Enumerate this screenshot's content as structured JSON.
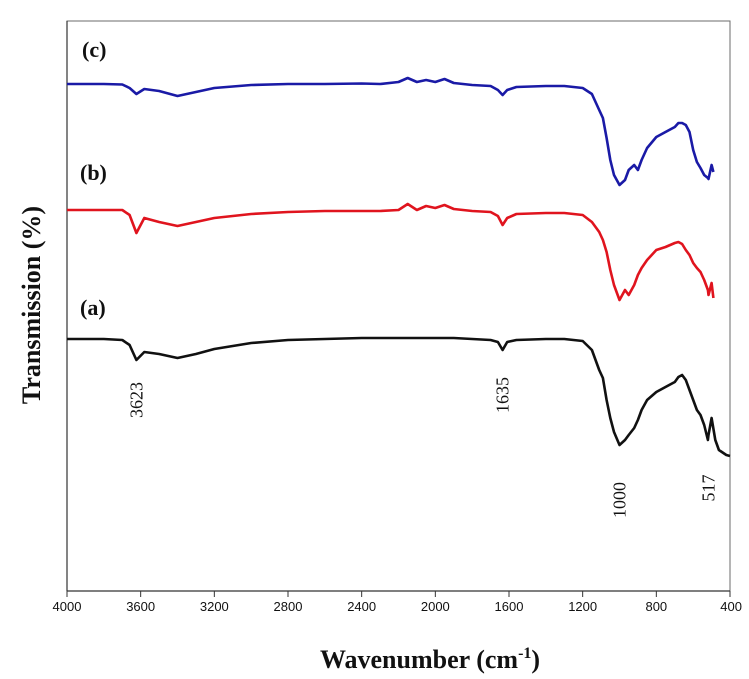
{
  "chart_data": {
    "type": "line",
    "xlabel": "Wavenumber (cm",
    "xlabel_sup": "-1",
    "xlabel_end": ")",
    "ylabel": "Transmission (%)",
    "xlim": [
      4000,
      400
    ],
    "x_reversed": true,
    "xticks": [
      "4000",
      "3600",
      "3200",
      "2800",
      "2400",
      "2000",
      "1600",
      "1200",
      "800",
      "400"
    ],
    "yticks_shown": false,
    "grid": false,
    "legend": "none",
    "series": [
      {
        "name": "(c)",
        "color": "#1a1aa6",
        "points": [
          [
            4000,
            84
          ],
          [
            3800,
            84
          ],
          [
            3700,
            84.5
          ],
          [
            3660,
            88
          ],
          [
            3623,
            94
          ],
          [
            3580,
            89
          ],
          [
            3500,
            91
          ],
          [
            3400,
            96
          ],
          [
            3300,
            92
          ],
          [
            3200,
            88
          ],
          [
            3000,
            85
          ],
          [
            2800,
            84
          ],
          [
            2600,
            84
          ],
          [
            2400,
            83.5
          ],
          [
            2300,
            84
          ],
          [
            2200,
            82
          ],
          [
            2150,
            78
          ],
          [
            2100,
            82
          ],
          [
            2050,
            80
          ],
          [
            2000,
            82
          ],
          [
            1950,
            79
          ],
          [
            1900,
            83
          ],
          [
            1850,
            84
          ],
          [
            1800,
            85
          ],
          [
            1700,
            86
          ],
          [
            1660,
            90
          ],
          [
            1635,
            95
          ],
          [
            1610,
            90
          ],
          [
            1560,
            87
          ],
          [
            1400,
            86
          ],
          [
            1300,
            86
          ],
          [
            1200,
            88
          ],
          [
            1150,
            94
          ],
          [
            1110,
            110
          ],
          [
            1090,
            118
          ],
          [
            1070,
            138
          ],
          [
            1050,
            160
          ],
          [
            1030,
            175
          ],
          [
            1000,
            185
          ],
          [
            970,
            180
          ],
          [
            950,
            170
          ],
          [
            920,
            165
          ],
          [
            900,
            170
          ],
          [
            880,
            160
          ],
          [
            850,
            148
          ],
          [
            800,
            137
          ],
          [
            750,
            132
          ],
          [
            700,
            127
          ],
          [
            680,
            123
          ],
          [
            660,
            123
          ],
          [
            640,
            125
          ],
          [
            620,
            132
          ],
          [
            600,
            150
          ],
          [
            580,
            162
          ],
          [
            560,
            168
          ],
          [
            540,
            175
          ],
          [
            520,
            178
          ],
          [
            517,
            179
          ],
          [
            500,
            165
          ],
          [
            490,
            172
          ]
        ]
      },
      {
        "name": "(b)",
        "color": "#e0141e",
        "points": [
          [
            4000,
            210
          ],
          [
            3800,
            210
          ],
          [
            3700,
            210
          ],
          [
            3660,
            215
          ],
          [
            3623,
            233
          ],
          [
            3580,
            218
          ],
          [
            3500,
            222
          ],
          [
            3400,
            226
          ],
          [
            3300,
            222
          ],
          [
            3200,
            218
          ],
          [
            3000,
            214
          ],
          [
            2800,
            212
          ],
          [
            2600,
            211
          ],
          [
            2400,
            211
          ],
          [
            2300,
            211
          ],
          [
            2200,
            210
          ],
          [
            2150,
            204
          ],
          [
            2100,
            210
          ],
          [
            2050,
            206
          ],
          [
            2000,
            208
          ],
          [
            1950,
            205
          ],
          [
            1900,
            209
          ],
          [
            1850,
            210
          ],
          [
            1800,
            211
          ],
          [
            1700,
            212
          ],
          [
            1660,
            216
          ],
          [
            1635,
            225
          ],
          [
            1610,
            218
          ],
          [
            1560,
            214
          ],
          [
            1400,
            213
          ],
          [
            1300,
            213
          ],
          [
            1200,
            215
          ],
          [
            1150,
            222
          ],
          [
            1110,
            232
          ],
          [
            1090,
            240
          ],
          [
            1070,
            252
          ],
          [
            1050,
            270
          ],
          [
            1030,
            285
          ],
          [
            1000,
            300
          ],
          [
            970,
            290
          ],
          [
            950,
            295
          ],
          [
            920,
            285
          ],
          [
            900,
            275
          ],
          [
            880,
            268
          ],
          [
            850,
            260
          ],
          [
            800,
            250
          ],
          [
            750,
            247
          ],
          [
            700,
            243
          ],
          [
            680,
            242
          ],
          [
            660,
            244
          ],
          [
            640,
            250
          ],
          [
            620,
            255
          ],
          [
            600,
            263
          ],
          [
            580,
            268
          ],
          [
            560,
            272
          ],
          [
            540,
            280
          ],
          [
            520,
            290
          ],
          [
            517,
            295
          ],
          [
            500,
            283
          ],
          [
            490,
            298
          ]
        ]
      },
      {
        "name": "(a)",
        "color": "#111111",
        "points": [
          [
            4000,
            339
          ],
          [
            3800,
            339
          ],
          [
            3700,
            340
          ],
          [
            3660,
            345
          ],
          [
            3623,
            360
          ],
          [
            3580,
            352
          ],
          [
            3500,
            354
          ],
          [
            3400,
            358
          ],
          [
            3300,
            354
          ],
          [
            3200,
            349
          ],
          [
            3000,
            343
          ],
          [
            2800,
            340
          ],
          [
            2600,
            339
          ],
          [
            2400,
            338
          ],
          [
            2300,
            338
          ],
          [
            2200,
            338
          ],
          [
            2100,
            338
          ],
          [
            2000,
            338
          ],
          [
            1900,
            338
          ],
          [
            1800,
            339
          ],
          [
            1700,
            340
          ],
          [
            1660,
            342
          ],
          [
            1635,
            350
          ],
          [
            1610,
            342
          ],
          [
            1560,
            340
          ],
          [
            1400,
            339
          ],
          [
            1300,
            339
          ],
          [
            1200,
            341
          ],
          [
            1150,
            350
          ],
          [
            1110,
            370
          ],
          [
            1090,
            378
          ],
          [
            1070,
            400
          ],
          [
            1050,
            418
          ],
          [
            1030,
            432
          ],
          [
            1000,
            445
          ],
          [
            970,
            440
          ],
          [
            950,
            435
          ],
          [
            920,
            428
          ],
          [
            900,
            420
          ],
          [
            880,
            410
          ],
          [
            850,
            400
          ],
          [
            800,
            392
          ],
          [
            750,
            387
          ],
          [
            700,
            382
          ],
          [
            680,
            377
          ],
          [
            660,
            375
          ],
          [
            640,
            380
          ],
          [
            620,
            390
          ],
          [
            600,
            400
          ],
          [
            580,
            410
          ],
          [
            560,
            415
          ],
          [
            540,
            425
          ],
          [
            520,
            440
          ],
          [
            517,
            435
          ],
          [
            500,
            418
          ],
          [
            480,
            440
          ],
          [
            460,
            450
          ],
          [
            420,
            455
          ],
          [
            400,
            456
          ]
        ]
      }
    ],
    "annotations": [
      {
        "text": "3623",
        "x": 3623
      },
      {
        "text": "1635",
        "x": 1635
      },
      {
        "text": "1000",
        "x": 1000
      },
      {
        "text": "517",
        "x": 517
      }
    ]
  }
}
